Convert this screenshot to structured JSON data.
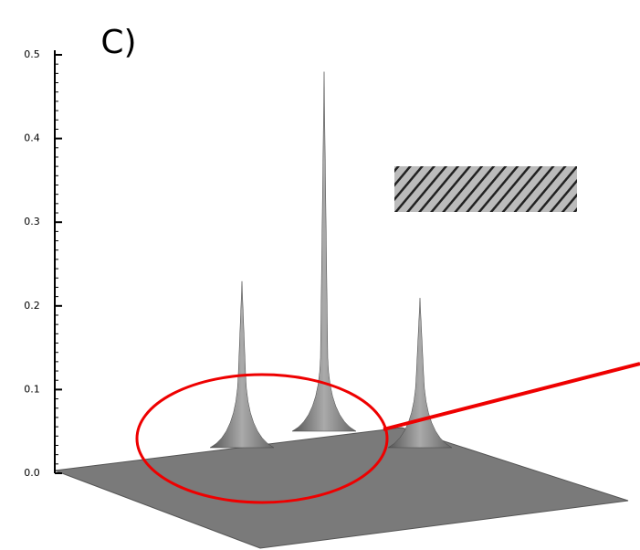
{
  "chart_data": {
    "type": "surface",
    "label": "C)",
    "zlim": [
      0,
      0.5
    ],
    "zticks": [
      {
        "value": 0,
        "label": "0.0"
      },
      0.1,
      0.2,
      0.3,
      0.4,
      0.5
    ],
    "peaks": [
      0.26,
      0.53,
      0.24
    ],
    "color": "#808080"
  }
}
